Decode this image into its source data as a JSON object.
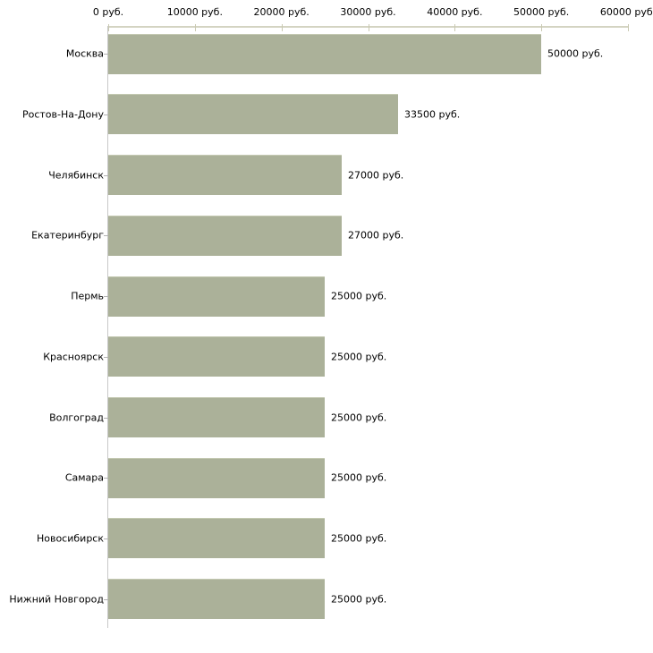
{
  "chart_data": {
    "type": "bar",
    "orientation": "horizontal",
    "title": "",
    "xlabel": "",
    "ylabel": "",
    "unit": "руб.",
    "xlim": [
      0,
      60000
    ],
    "grid": false,
    "legend": "none",
    "categories": [
      "Москва",
      "Ростов-На-Дону",
      "Челябинск",
      "Екатеринбург",
      "Пермь",
      "Красноярск",
      "Волгоград",
      "Самара",
      "Новосибирск",
      "Нижний Новгород"
    ],
    "values": [
      50000,
      33500,
      27000,
      27000,
      25000,
      25000,
      25000,
      25000,
      25000,
      25000
    ],
    "value_labels": [
      "50000 руб.",
      "33500 руб.",
      "27000 руб.",
      "27000 руб.",
      "25000 руб.",
      "25000 руб.",
      "25000 руб.",
      "25000 руб.",
      "25000 руб.",
      "25000 руб."
    ],
    "x_ticks": [
      {
        "value": 0,
        "label": "0 руб."
      },
      {
        "value": 10000,
        "label": "10000 руб."
      },
      {
        "value": 20000,
        "label": "20000 руб."
      },
      {
        "value": 30000,
        "label": "30000 руб."
      },
      {
        "value": 40000,
        "label": "40000 руб."
      },
      {
        "value": 50000,
        "label": "50000 руб."
      },
      {
        "value": 60000,
        "label": "60000 руб."
      }
    ],
    "colors": {
      "bar_fill": "#abb199",
      "bar_top_highlight": "#c4c9b2",
      "x_axis_line": "#d4d4c2",
      "x_tick_mark": "#c9c9b2",
      "y_axis_line": "#c9c9c9",
      "y_tick_dash": "#b3b3b3",
      "text": "#000000",
      "background": "#ffffff"
    }
  }
}
